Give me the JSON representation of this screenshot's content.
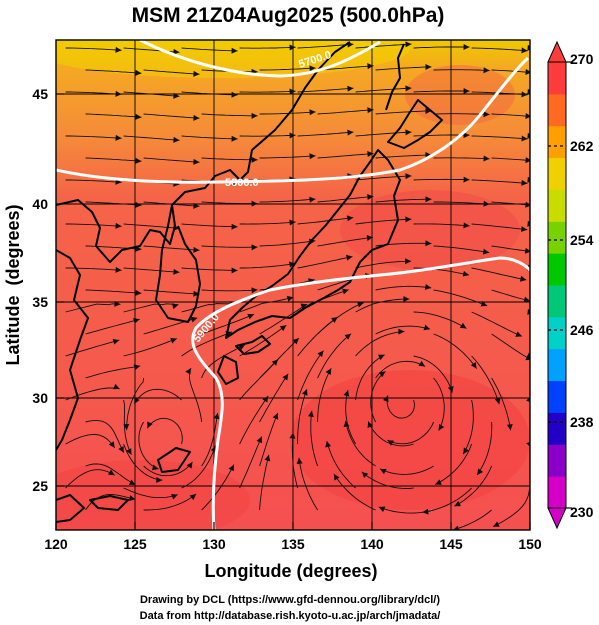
{
  "title": "MSM 21Z04Aug2025 (500.0hPa)",
  "x_axis": {
    "label": "Longitude (degrees)",
    "ticks": [
      "120",
      "125",
      "130",
      "135",
      "140",
      "145",
      "150"
    ],
    "range": [
      120,
      150
    ]
  },
  "y_axis": {
    "label": "Latitude  (degrees)",
    "ticks": [
      "25",
      "30",
      "35",
      "40",
      "45"
    ],
    "range": [
      22.5,
      47.5
    ]
  },
  "colorbar": {
    "ticks": [
      "270",
      "262",
      "254",
      "246",
      "238",
      "230"
    ],
    "range": [
      230,
      270
    ],
    "colors": [
      "#d400c8",
      "#8a00c8",
      "#2200c8",
      "#0040ff",
      "#00a0ff",
      "#00d0c8",
      "#00c878",
      "#00c800",
      "#78d200",
      "#c8dc00",
      "#f0d000",
      "#ffa000",
      "#ff6a20",
      "#ff3c3c"
    ]
  },
  "contours": [
    {
      "label": "5700.0",
      "color": "#ffffff"
    },
    {
      "label": "5800.0",
      "color": "#ffffff"
    },
    {
      "label": "5900.0",
      "color": "#ffffff"
    }
  ],
  "credits": {
    "line1": "Drawing by DCL (https://www.gfd-dennou.org/library/dcl/)",
    "line2": "Data from http://database.rish.kyoto-u.ac.jp/arch/jmadata/"
  }
}
